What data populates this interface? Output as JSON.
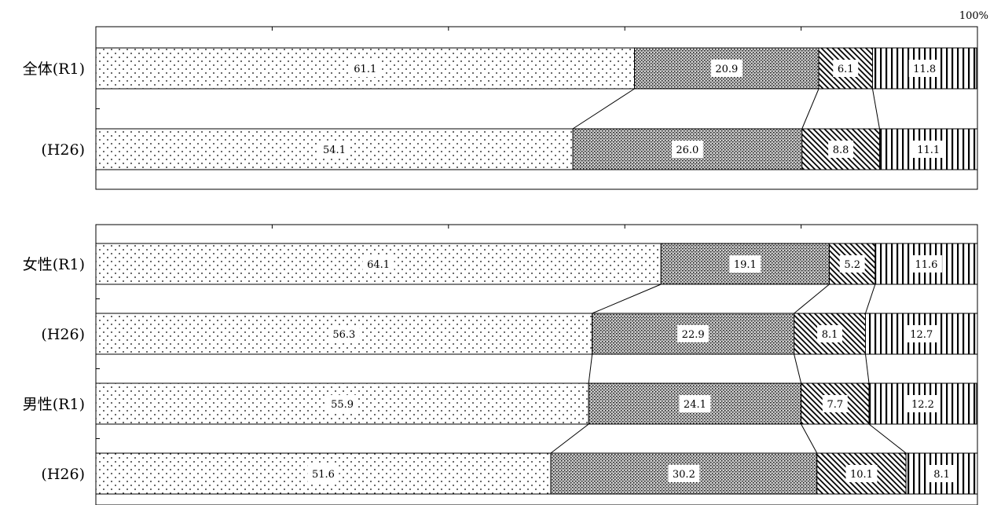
{
  "chart_data": [
    {
      "type": "bar",
      "stacked": "horizontal-100%",
      "xlim": [
        0,
        100
      ],
      "max_label": "100%",
      "categories": [
        "全体(R1)",
        "(H26)"
      ],
      "series": [
        {
          "values": [
            61.1,
            54.1
          ]
        },
        {
          "values": [
            20.9,
            26.0
          ]
        },
        {
          "values": [
            6.1,
            8.8
          ]
        },
        {
          "values": [
            11.8,
            11.1
          ]
        }
      ],
      "value_labels": [
        [
          "61.1",
          "20.9",
          "6.1",
          "11.8"
        ],
        [
          "54.1",
          "26.0",
          "8.8",
          "11.1"
        ]
      ]
    },
    {
      "type": "bar",
      "stacked": "horizontal-100%",
      "xlim": [
        0,
        100
      ],
      "categories": [
        "女性(R1)",
        "(H26)",
        "男性(R1)",
        "(H26)"
      ],
      "series": [
        {
          "values": [
            64.1,
            56.3,
            55.9,
            51.6
          ]
        },
        {
          "values": [
            19.1,
            22.9,
            24.1,
            30.2
          ]
        },
        {
          "values": [
            5.2,
            8.1,
            7.7,
            10.1
          ]
        },
        {
          "values": [
            11.6,
            12.7,
            12.2,
            8.1
          ]
        }
      ],
      "value_labels": [
        [
          "64.1",
          "19.1",
          "5.2",
          "11.6"
        ],
        [
          "56.3",
          "22.9",
          "8.1",
          "12.7"
        ],
        [
          "55.9",
          "24.1",
          "7.7",
          "12.2"
        ],
        [
          "51.6",
          "30.2",
          "10.1",
          "8.1"
        ]
      ]
    }
  ],
  "fills": [
    "dots",
    "crosshatch",
    "diagonal",
    "vertical"
  ]
}
